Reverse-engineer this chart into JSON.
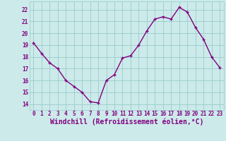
{
  "x": [
    0,
    1,
    2,
    3,
    4,
    5,
    6,
    7,
    8,
    9,
    10,
    11,
    12,
    13,
    14,
    15,
    16,
    17,
    18,
    19,
    20,
    21,
    22,
    23
  ],
  "y": [
    19.2,
    18.3,
    17.5,
    17.0,
    16.0,
    15.5,
    15.0,
    14.2,
    14.1,
    16.0,
    16.5,
    17.9,
    18.1,
    19.0,
    20.2,
    21.2,
    21.4,
    21.2,
    22.2,
    21.8,
    20.5,
    19.5,
    18.0,
    17.1
  ],
  "line_color": "#800080",
  "marker": "+",
  "bg_color": "#cceaea",
  "grid_color": "#99cccc",
  "xlabel": "Windchill (Refroidissement éolien,°C)",
  "ylim": [
    13.5,
    22.7
  ],
  "xlim": [
    -0.5,
    23.5
  ],
  "yticks": [
    14,
    15,
    16,
    17,
    18,
    19,
    20,
    21,
    22
  ],
  "xticks": [
    0,
    1,
    2,
    3,
    4,
    5,
    6,
    7,
    8,
    9,
    10,
    11,
    12,
    13,
    14,
    15,
    16,
    17,
    18,
    19,
    20,
    21,
    22,
    23
  ],
  "tick_label_fontsize": 5.5,
  "xlabel_fontsize": 7.0,
  "line_width": 1.0,
  "marker_size": 3.5,
  "marker_edge_width": 1.0
}
